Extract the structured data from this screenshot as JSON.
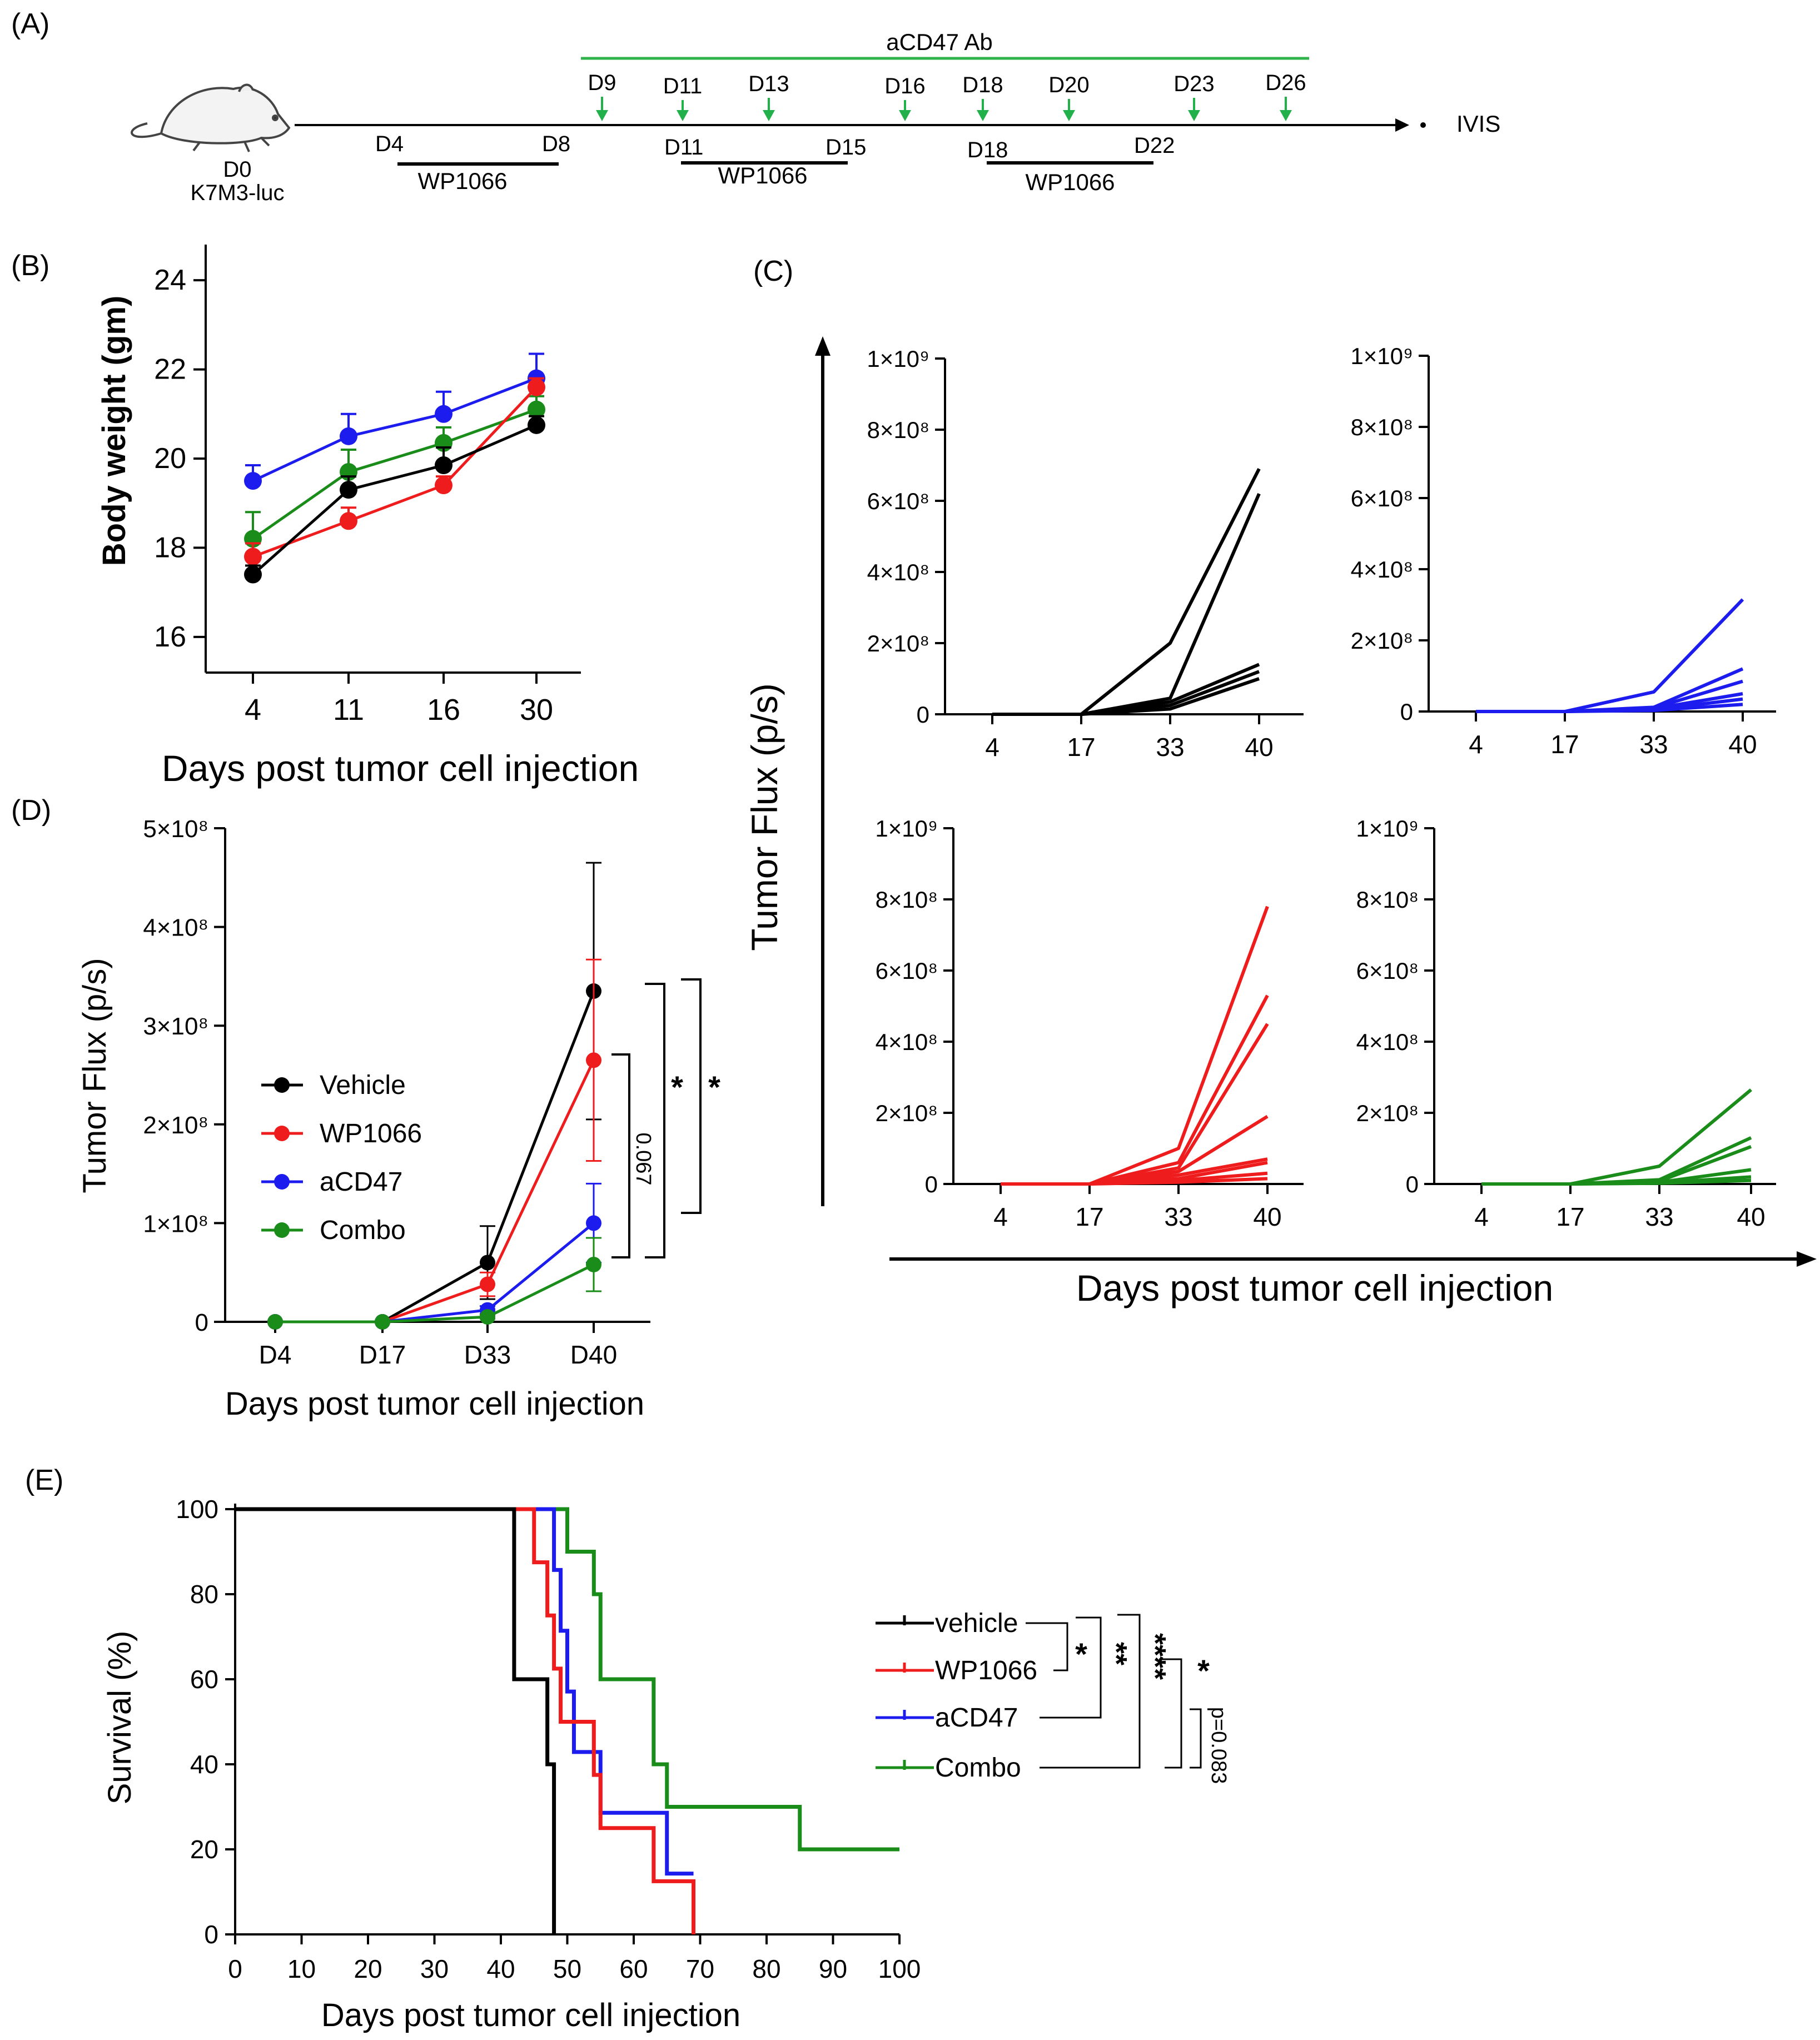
{
  "panel_labels": {
    "a": "(A)",
    "b": "(B)",
    "c": "(C)",
    "d": "(D)",
    "e": "(E)"
  },
  "colors": {
    "vehicle": "#000000",
    "wp1066": "#ee1c1c",
    "acd47": "#1c1cee",
    "combo": "#1a8c1a",
    "ab_bar": "#2db34a",
    "arrow": "#22b04a"
  },
  "timeline": {
    "ab_label": "aCD47 Ab",
    "ab_days": [
      "D9",
      "D11",
      "D13",
      "D16",
      "D18",
      "D20",
      "D23",
      "D26"
    ],
    "start_label": "D0",
    "model_label": "K7M3-luc",
    "end_label": "IVIS",
    "wp_windows": [
      {
        "start": "D4",
        "end": "D8",
        "label": "WP1066"
      },
      {
        "start": "D11",
        "end": "D15",
        "label": "WP1066"
      },
      {
        "start": "D18",
        "end": "D22",
        "label": "WP1066"
      }
    ]
  },
  "chart_data": [
    {
      "id": "B",
      "type": "line",
      "ylabel": "Body weight (gm)",
      "xlabel": "Days post tumor cell injection",
      "categories": [
        "4",
        "11",
        "16",
        "30"
      ],
      "yticks": [
        "16",
        "18",
        "20",
        "22",
        "24"
      ],
      "ylim": [
        15.2,
        24.8
      ],
      "series": [
        {
          "name": "aCD47",
          "color": "#1c1cee",
          "values": [
            19.5,
            20.5,
            21.0,
            21.8
          ],
          "err": [
            0.35,
            0.5,
            0.5,
            0.55
          ]
        },
        {
          "name": "Combo",
          "color": "#1a8c1a",
          "values": [
            18.2,
            19.7,
            20.35,
            21.1
          ],
          "err": [
            0.6,
            0.5,
            0.35,
            0.3
          ]
        },
        {
          "name": "WP1066",
          "color": "#ee1c1c",
          "values": [
            17.8,
            18.6,
            19.4,
            21.6
          ],
          "err": [
            0.3,
            0.3,
            0.2,
            0.2
          ]
        },
        {
          "name": "Vehicle",
          "color": "#000000",
          "values": [
            17.4,
            19.3,
            19.85,
            20.75
          ],
          "err": [
            0.2,
            0.3,
            0.4,
            0.2
          ]
        }
      ]
    },
    {
      "id": "C",
      "type": "line",
      "ylabel": "Tumor Flux (p/s)",
      "xlabel": "Days post tumor cell injection",
      "categories": [
        "4",
        "17",
        "33",
        "40"
      ],
      "yticks": [
        "0",
        "2×10⁸",
        "4×10⁸",
        "6×10⁸",
        "8×10⁸",
        "1×10⁹"
      ],
      "ylim": [
        0,
        1000000000
      ],
      "subplots": [
        {
          "name": "Vehicle",
          "color": "#000000",
          "individual": [
            [
              0,
              0,
              200000000,
              690000000
            ],
            [
              0,
              0,
              45000000,
              620000000
            ],
            [
              0,
              0,
              35000000,
              140000000
            ],
            [
              0,
              0,
              25000000,
              120000000
            ],
            [
              0,
              0,
              15000000,
              100000000
            ]
          ]
        },
        {
          "name": "aCD47",
          "color": "#1c1cee",
          "individual": [
            [
              0,
              0,
              55000000,
              315000000
            ],
            [
              0,
              0,
              12000000,
              120000000
            ],
            [
              0,
              0,
              10000000,
              85000000
            ],
            [
              0,
              0,
              8000000,
              50000000
            ],
            [
              0,
              0,
              5000000,
              35000000
            ],
            [
              0,
              0,
              3000000,
              20000000
            ]
          ]
        },
        {
          "name": "WP1066",
          "color": "#ee1c1c",
          "individual": [
            [
              0,
              0,
              100000000,
              780000000
            ],
            [
              0,
              0,
              60000000,
              530000000
            ],
            [
              0,
              0,
              45000000,
              450000000
            ],
            [
              0,
              0,
              35000000,
              190000000
            ],
            [
              0,
              0,
              25000000,
              70000000
            ],
            [
              0,
              0,
              15000000,
              60000000
            ],
            [
              0,
              0,
              10000000,
              30000000
            ],
            [
              0,
              0,
              5000000,
              15000000
            ]
          ]
        },
        {
          "name": "Combo",
          "color": "#1a8c1a",
          "individual": [
            [
              0,
              0,
              50000000,
              265000000
            ],
            [
              0,
              0,
              12000000,
              130000000
            ],
            [
              0,
              0,
              8000000,
              105000000
            ],
            [
              0,
              0,
              5000000,
              40000000
            ],
            [
              0,
              0,
              3000000,
              20000000
            ],
            [
              0,
              0,
              2000000,
              10000000
            ]
          ]
        }
      ]
    },
    {
      "id": "D",
      "type": "line",
      "ylabel": "Tumor Flux (p/s)",
      "xlabel": "Days post tumor cell injection",
      "categories": [
        "D4",
        "D17",
        "D33",
        "D40"
      ],
      "yticks": [
        "0",
        "1×10⁸",
        "2×10⁸",
        "3×10⁸",
        "4×10⁸",
        "5×10⁸"
      ],
      "ylim": [
        0,
        500000000
      ],
      "series": [
        {
          "name": "Vehicle",
          "color": "#000000",
          "values": [
            0,
            0,
            60000000,
            335000000
          ],
          "err": [
            0,
            0,
            37000000,
            130000000
          ]
        },
        {
          "name": "WP1066",
          "color": "#ee1c1c",
          "values": [
            0,
            0,
            38000000,
            265000000
          ],
          "err": [
            0,
            0,
            12000000,
            102000000
          ]
        },
        {
          "name": "aCD47",
          "color": "#1c1cee",
          "values": [
            0,
            0,
            12000000,
            100000000
          ],
          "err": [
            0,
            0,
            4000000,
            40000000
          ]
        },
        {
          "name": "Combo",
          "color": "#1a8c1a",
          "values": [
            0,
            0,
            5000000,
            58000000
          ],
          "err": [
            0,
            0,
            2000000,
            27000000
          ]
        }
      ],
      "significance": [
        "*",
        "*",
        "0.067"
      ]
    },
    {
      "id": "E",
      "type": "line",
      "ylabel": "Survival (%)",
      "xlabel": "Days post tumor cell injection",
      "xticks": [
        "0",
        "10",
        "20",
        "30",
        "40",
        "50",
        "60",
        "70",
        "80",
        "90",
        "100"
      ],
      "xlim": [
        0,
        100
      ],
      "yticks": [
        "0",
        "20",
        "40",
        "60",
        "80",
        "100"
      ],
      "ylim": [
        0,
        100
      ],
      "series": [
        {
          "name": "vehicle",
          "color": "#000000",
          "steps": [
            [
              0,
              100
            ],
            [
              42,
              60
            ],
            [
              47,
              40
            ],
            [
              48,
              0
            ]
          ]
        },
        {
          "name": "WP1066",
          "color": "#ee1c1c",
          "steps": [
            [
              0,
              100
            ],
            [
              45,
              87.5
            ],
            [
              47,
              75
            ],
            [
              48,
              62.5
            ],
            [
              49,
              50
            ],
            [
              54,
              37.5
            ],
            [
              55,
              25
            ],
            [
              63,
              12.5
            ],
            [
              69,
              0
            ]
          ]
        },
        {
          "name": "aCD47",
          "color": "#1c1cee",
          "steps": [
            [
              0,
              100
            ],
            [
              48,
              85.7
            ],
            [
              49,
              71.4
            ],
            [
              50,
              57.1
            ],
            [
              51,
              42.9
            ],
            [
              55,
              28.6
            ],
            [
              65,
              14.3
            ],
            [
              69,
              14.3
            ]
          ]
        },
        {
          "name": "Combo",
          "color": "#1a8c1a",
          "steps": [
            [
              0,
              100
            ],
            [
              50,
              90
            ],
            [
              54,
              80
            ],
            [
              55,
              60
            ],
            [
              63,
              40
            ],
            [
              65,
              30
            ],
            [
              85,
              20
            ],
            [
              100,
              20
            ]
          ]
        }
      ],
      "significance": [
        "*",
        "**",
        "****",
        "*",
        "p=0.083"
      ]
    }
  ]
}
